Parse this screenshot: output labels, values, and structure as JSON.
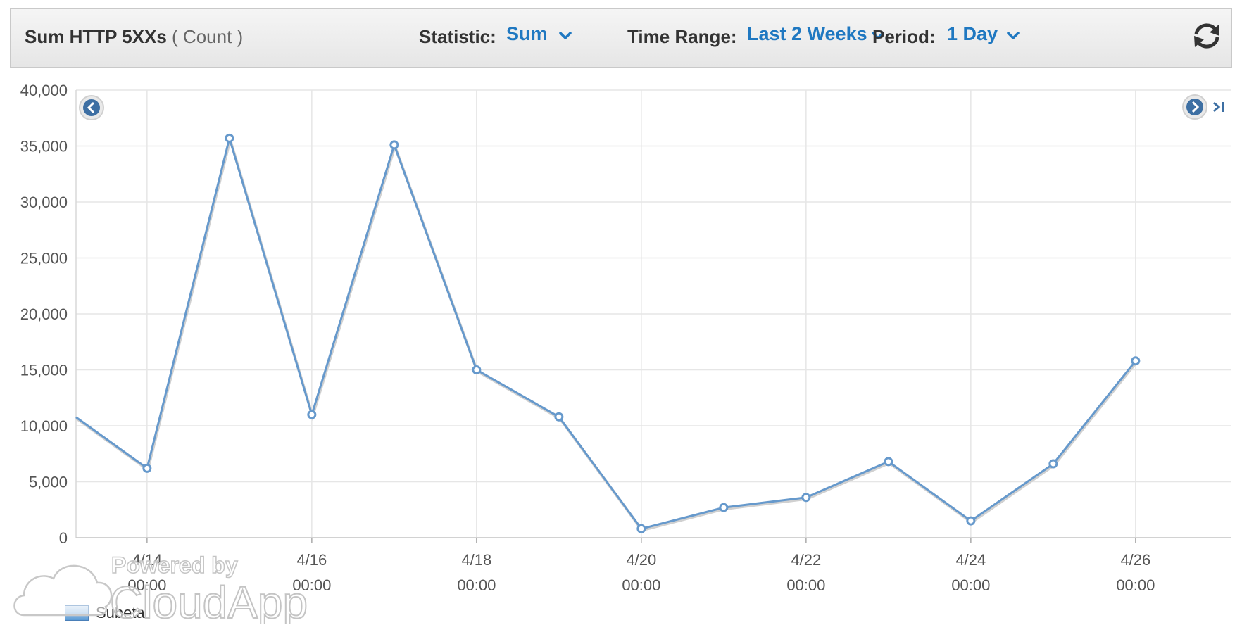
{
  "header": {
    "title": "Sum HTTP 5XXs",
    "title_unit": "( Count )",
    "statistic_label": "Statistic:",
    "statistic_value": "Sum",
    "time_range_label": "Time Range:",
    "time_range_value": "Last 2 Weeks",
    "period_label": "Period:",
    "period_value": "1 Day"
  },
  "icons": {
    "dropdown": "chevron-down-icon",
    "refresh": "refresh-icon",
    "prev": "arrow-left-circle-icon",
    "next": "arrow-right-circle-icon",
    "last": "skip-to-end-icon"
  },
  "colors": {
    "accent": "#1f78c1",
    "series": "#6699cc"
  },
  "legend": {
    "label": "Subeta"
  },
  "watermark": {
    "line1": "Powered by",
    "line2": "CloudApp"
  },
  "chart_data": {
    "type": "line",
    "ylim": [
      0,
      40000
    ],
    "yticks": [
      "0",
      "5,000",
      "10,000",
      "15,000",
      "20,000",
      "25,000",
      "30,000",
      "35,000",
      "40,000"
    ],
    "xtick_dates": [
      "4/14",
      "4/16",
      "4/18",
      "4/20",
      "4/22",
      "4/24",
      "4/26"
    ],
    "xtick_time": "00:00",
    "grid": true,
    "legend_placement": "bottom-left",
    "series": [
      {
        "name": "Subeta",
        "x": [
          "4/13 00:00",
          "4/14 00:00",
          "4/15 00:00",
          "4/16 00:00",
          "4/17 00:00",
          "4/18 00:00",
          "4/19 00:00",
          "4/20 00:00",
          "4/21 00:00",
          "4/22 00:00",
          "4/23 00:00",
          "4/24 00:00",
          "4/25 00:00",
          "4/26 00:00"
        ],
        "y": [
          11500,
          6200,
          35700,
          11000,
          35100,
          15000,
          10800,
          800,
          2700,
          3600,
          6800,
          1500,
          6600,
          15800
        ],
        "marker_visible": [
          false,
          true,
          true,
          true,
          true,
          true,
          true,
          true,
          true,
          true,
          true,
          true,
          true,
          true
        ]
      }
    ]
  }
}
